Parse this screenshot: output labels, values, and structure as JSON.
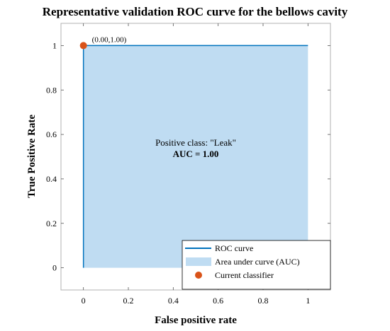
{
  "chart_data": {
    "type": "area",
    "title": "Representative validation ROC curve for the bellows cavity",
    "xlabel": "False positive rate",
    "ylabel": "True Positive Rate",
    "xlim": [
      -0.1,
      1.1
    ],
    "ylim": [
      -0.1,
      1.1
    ],
    "x_ticks": [
      0,
      0.2,
      0.4,
      0.6,
      0.8,
      1
    ],
    "y_ticks": [
      0,
      0.2,
      0.4,
      0.6,
      0.8,
      1
    ],
    "x_tick_labels": [
      "0",
      "0.2",
      "0.4",
      "0.6",
      "0.8",
      "1"
    ],
    "y_tick_labels": [
      "0",
      "0.2",
      "0.4",
      "0.6",
      "0.8",
      "1"
    ],
    "grid": false,
    "legend_position": "bottom-right",
    "series": [
      {
        "name": "ROC curve",
        "kind": "line",
        "color": "#0072bd",
        "x": [
          0,
          0,
          1
        ],
        "y": [
          0,
          1,
          1
        ]
      },
      {
        "name": "Area under curve (AUC)",
        "kind": "area",
        "color": "#bfdcf2",
        "x": [
          0,
          0,
          1,
          1
        ],
        "y": [
          0,
          1,
          1,
          0
        ]
      },
      {
        "name": "Current classifier",
        "kind": "point",
        "color": "#d95319",
        "x": [
          0
        ],
        "y": [
          1
        ]
      }
    ],
    "annotations": {
      "point_label": "(0.00,1.00)",
      "class_text": "Positive class: \"Leak\"",
      "auc_text": "AUC = 1.00"
    }
  }
}
